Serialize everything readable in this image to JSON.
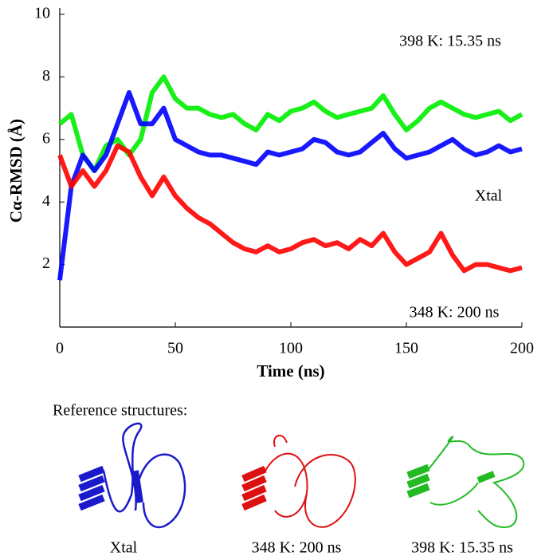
{
  "chart_data": {
    "type": "line",
    "xlabel": "Time (ns)",
    "ylabel": "Cα-RMSD (Å)",
    "x": [
      0,
      5,
      10,
      15,
      20,
      25,
      30,
      35,
      40,
      45,
      50,
      55,
      60,
      65,
      70,
      75,
      80,
      85,
      90,
      95,
      100,
      105,
      110,
      115,
      120,
      125,
      130,
      135,
      140,
      145,
      150,
      155,
      160,
      165,
      170,
      175,
      180,
      185,
      190,
      195,
      200
    ],
    "series": [
      {
        "name": "398 K: 15.35 ns",
        "color": "#00ee00",
        "values": [
          6.5,
          6.8,
          5.5,
          5.0,
          5.8,
          6.0,
          5.5,
          6.0,
          7.5,
          8.0,
          7.3,
          7.0,
          7.0,
          6.8,
          6.7,
          6.8,
          6.5,
          6.3,
          6.8,
          6.6,
          6.9,
          7.0,
          7.2,
          6.9,
          6.7,
          6.8,
          6.9,
          7.0,
          7.4,
          6.8,
          6.3,
          6.6,
          7.0,
          7.2,
          7.0,
          6.8,
          6.7,
          6.8,
          6.9,
          6.6,
          6.8
        ]
      },
      {
        "name": "Xtal",
        "color": "#0000ff",
        "values": [
          1.5,
          4.5,
          5.5,
          5.0,
          5.5,
          6.5,
          7.5,
          6.5,
          6.5,
          7.0,
          6.0,
          5.8,
          5.6,
          5.5,
          5.5,
          5.4,
          5.3,
          5.2,
          5.6,
          5.5,
          5.6,
          5.7,
          6.0,
          5.9,
          5.6,
          5.5,
          5.6,
          5.9,
          6.2,
          5.7,
          5.4,
          5.5,
          5.6,
          5.8,
          6.0,
          5.7,
          5.5,
          5.6,
          5.8,
          5.6,
          5.7
        ]
      },
      {
        "name": "348 K: 200 ns",
        "color": "#ff0000",
        "values": [
          5.5,
          4.5,
          5.0,
          4.5,
          5.0,
          5.8,
          5.6,
          4.8,
          4.2,
          4.8,
          4.2,
          3.8,
          3.5,
          3.3,
          3.0,
          2.7,
          2.5,
          2.4,
          2.6,
          2.4,
          2.5,
          2.7,
          2.8,
          2.6,
          2.7,
          2.5,
          2.8,
          2.6,
          3.0,
          2.4,
          2.0,
          2.2,
          2.4,
          3.0,
          2.3,
          1.8,
          2.0,
          2.0,
          1.9,
          1.8,
          1.9
        ]
      }
    ],
    "xlim": [
      0,
      200
    ],
    "xticks": [
      0,
      50,
      100,
      150,
      200
    ],
    "ylim": [
      0,
      10
    ],
    "yticks": [
      2,
      4,
      6,
      8,
      10
    ]
  },
  "reference_structures": {
    "title": "Reference structures:",
    "labels": [
      "Xtal",
      "348 K: 200 ns",
      "398 K: 15.35 ns"
    ]
  }
}
